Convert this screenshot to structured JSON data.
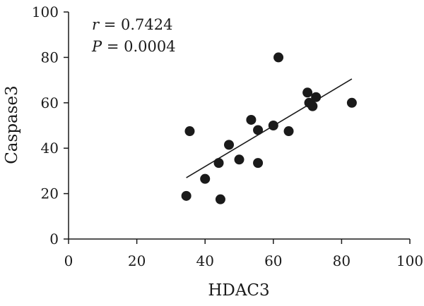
{
  "chart_data": {
    "type": "scatter",
    "xlabel": "HDAC3",
    "ylabel": "Caspase3",
    "xlim": [
      0,
      100
    ],
    "ylim": [
      0,
      100
    ],
    "xticks": [
      0,
      20,
      40,
      60,
      80,
      100
    ],
    "yticks": [
      0,
      20,
      40,
      60,
      80,
      100
    ],
    "grid": false,
    "annotations": [
      {
        "italic": "r",
        "rest": " = 0.7424"
      },
      {
        "italic": "P",
        "rest": " = 0.0004"
      }
    ],
    "points": [
      {
        "x": 34.5,
        "y": 19
      },
      {
        "x": 35.5,
        "y": 47.5
      },
      {
        "x": 40,
        "y": 26.5
      },
      {
        "x": 44,
        "y": 33.5
      },
      {
        "x": 44.5,
        "y": 17.5
      },
      {
        "x": 47,
        "y": 41.5
      },
      {
        "x": 50,
        "y": 35
      },
      {
        "x": 53.5,
        "y": 52.5
      },
      {
        "x": 55.5,
        "y": 33.5
      },
      {
        "x": 55.5,
        "y": 48
      },
      {
        "x": 60,
        "y": 50
      },
      {
        "x": 61.5,
        "y": 80
      },
      {
        "x": 64.5,
        "y": 47.5
      },
      {
        "x": 70,
        "y": 64.5
      },
      {
        "x": 70.5,
        "y": 60
      },
      {
        "x": 71.5,
        "y": 58.5
      },
      {
        "x": 72.5,
        "y": 62.5
      },
      {
        "x": 83,
        "y": 60
      }
    ],
    "fit_line": {
      "x": [
        34.5,
        83
      ],
      "y": [
        27,
        70.5
      ]
    }
  }
}
